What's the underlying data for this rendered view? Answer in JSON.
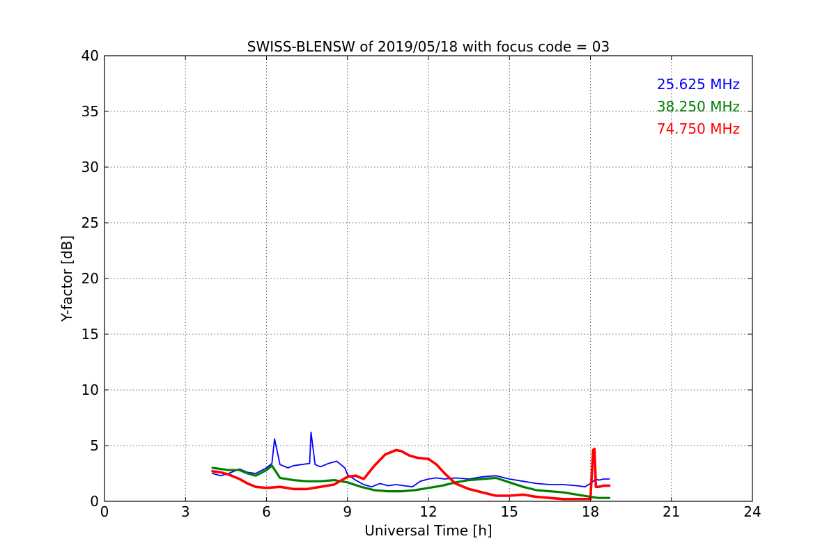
{
  "chart_data": {
    "type": "line",
    "title": "SWISS-BLENSW of 2019/05/18 with focus code = 03",
    "xlabel": "Universal Time [h]",
    "ylabel": "Y-factor [dB]",
    "xlim": [
      0,
      24
    ],
    "ylim": [
      0,
      40
    ],
    "xticks": [
      0,
      3,
      6,
      9,
      12,
      15,
      18,
      21,
      24
    ],
    "yticks": [
      0,
      5,
      10,
      15,
      20,
      25,
      30,
      35,
      40
    ],
    "grid": true,
    "legend_position": "top-right",
    "series": [
      {
        "name": "25.625 MHz",
        "color": "#0000ff",
        "x": [
          4.0,
          4.3,
          4.6,
          5.0,
          5.3,
          5.6,
          6.0,
          6.2,
          6.3,
          6.5,
          6.8,
          7.0,
          7.3,
          7.6,
          7.65,
          7.8,
          8.0,
          8.3,
          8.6,
          8.9,
          9.0,
          9.3,
          9.6,
          9.9,
          10.2,
          10.5,
          10.8,
          11.1,
          11.4,
          11.7,
          12.0,
          12.3,
          12.6,
          13.0,
          13.5,
          14.0,
          14.5,
          15.0,
          15.5,
          16.0,
          16.5,
          17.0,
          17.5,
          17.8,
          18.0,
          18.1,
          18.2,
          18.3,
          18.5,
          18.7
        ],
        "y": [
          2.5,
          2.3,
          2.5,
          2.9,
          2.6,
          2.5,
          3.0,
          3.4,
          5.6,
          3.3,
          3.0,
          3.2,
          3.3,
          3.4,
          6.2,
          3.3,
          3.1,
          3.4,
          3.6,
          3.0,
          2.4,
          1.9,
          1.5,
          1.3,
          1.6,
          1.4,
          1.5,
          1.4,
          1.3,
          1.8,
          2.0,
          2.1,
          2.0,
          2.1,
          2.0,
          2.2,
          2.3,
          2.0,
          1.8,
          1.6,
          1.5,
          1.5,
          1.4,
          1.3,
          1.6,
          1.8,
          2.0,
          1.9,
          2.0,
          2.0
        ]
      },
      {
        "name": "38.250 MHz",
        "color": "#008000",
        "x": [
          4.0,
          4.3,
          4.6,
          5.0,
          5.3,
          5.6,
          6.0,
          6.2,
          6.5,
          7.0,
          7.5,
          8.0,
          8.5,
          9.0,
          9.5,
          10.0,
          10.5,
          11.0,
          11.5,
          12.0,
          12.5,
          13.0,
          13.5,
          14.0,
          14.5,
          15.0,
          15.5,
          16.0,
          16.5,
          17.0,
          17.5,
          18.0,
          18.3,
          18.5,
          18.7
        ],
        "y": [
          3.0,
          2.9,
          2.8,
          2.8,
          2.5,
          2.3,
          2.8,
          3.2,
          2.1,
          1.9,
          1.8,
          1.8,
          1.9,
          1.7,
          1.3,
          1.0,
          0.9,
          0.9,
          1.0,
          1.2,
          1.4,
          1.7,
          1.9,
          2.0,
          2.1,
          1.7,
          1.3,
          1.0,
          0.9,
          0.8,
          0.6,
          0.4,
          0.3,
          0.3,
          0.3
        ]
      },
      {
        "name": "74.750 MHz",
        "color": "#ff0000",
        "x": [
          4.0,
          4.3,
          4.6,
          5.0,
          5.3,
          5.6,
          6.0,
          6.5,
          7.0,
          7.5,
          8.0,
          8.5,
          9.0,
          9.3,
          9.6,
          10.0,
          10.4,
          10.8,
          11.0,
          11.3,
          11.6,
          12.0,
          12.3,
          12.6,
          13.0,
          13.5,
          14.0,
          14.5,
          15.0,
          15.5,
          16.0,
          16.5,
          17.0,
          17.5,
          18.0,
          18.1,
          18.15,
          18.2,
          18.3,
          18.5,
          18.7
        ],
        "y": [
          2.7,
          2.6,
          2.4,
          2.0,
          1.6,
          1.3,
          1.2,
          1.3,
          1.1,
          1.1,
          1.3,
          1.5,
          2.2,
          2.3,
          2.0,
          3.2,
          4.2,
          4.6,
          4.5,
          4.1,
          3.9,
          3.8,
          3.3,
          2.5,
          1.6,
          1.1,
          0.8,
          0.5,
          0.5,
          0.6,
          0.4,
          0.3,
          0.2,
          0.2,
          0.2,
          4.6,
          4.7,
          1.3,
          1.3,
          1.4,
          1.4
        ]
      }
    ]
  }
}
